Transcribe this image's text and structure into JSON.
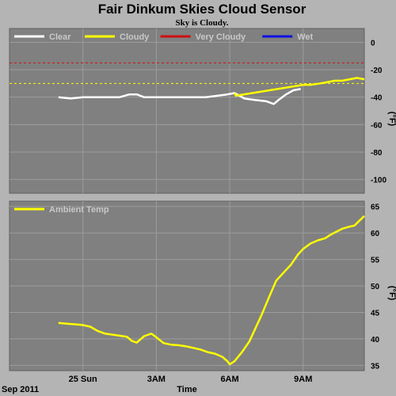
{
  "header": {
    "title": "Fair Dinkum Skies Cloud Sensor",
    "subtitle": "Sky is Cloudy."
  },
  "footer": {
    "date_label": "Sep 2011",
    "x_axis_label": "Time"
  },
  "colors": {
    "background": "#b4b4b4",
    "plot_area": "#808080",
    "grid": "#9c9c9c",
    "clear": "#ffffff",
    "cloudy": "#ffff00",
    "very_cloudy": "#d01010",
    "wet": "#1010e0"
  },
  "chart_data": [
    {
      "type": "line",
      "name": "sky-temperature",
      "ylabel": "(°F)",
      "ylim": [
        -110,
        10
      ],
      "yticks": [
        0,
        -20,
        -40,
        -60,
        -80,
        -100
      ],
      "x_hours_range": [
        -3.0,
        11.5
      ],
      "x_ticks": [
        {
          "hour": 0,
          "label": "25 Sun"
        },
        {
          "hour": 3,
          "label": "3AM"
        },
        {
          "hour": 6,
          "label": "6AM"
        },
        {
          "hour": 9,
          "label": "9AM"
        }
      ],
      "legend": [
        {
          "name": "Clear",
          "color": "#ffffff"
        },
        {
          "name": "Cloudy",
          "color": "#ffff00"
        },
        {
          "name": "Very Cloudy",
          "color": "#d01010"
        },
        {
          "name": "Wet",
          "color": "#1010e0"
        }
      ],
      "thresholds": [
        {
          "name": "Very Cloudy",
          "value": -15,
          "color": "#d01010"
        },
        {
          "name": "Cloudy",
          "value": -30,
          "color": "#ffff00"
        }
      ],
      "series": [
        {
          "name": "Clear",
          "color": "#ffffff",
          "x": [
            -1.0,
            -0.5,
            0.0,
            0.5,
            1.0,
            1.5,
            1.9,
            2.2,
            2.5,
            3.0,
            3.5,
            4.0,
            4.5,
            5.0,
            5.5,
            5.9,
            6.2,
            6.6,
            7.0,
            7.5,
            7.8,
            8.0,
            8.3,
            8.6,
            8.9
          ],
          "y": [
            -40,
            -41,
            -40,
            -40,
            -40,
            -40,
            -38,
            -38,
            -40,
            -40,
            -40,
            -40,
            -40,
            -40,
            -39,
            -38,
            -37,
            -41,
            -42,
            -43,
            -45,
            -42,
            -38,
            -35,
            -34
          ]
        },
        {
          "name": "Cloudy",
          "color": "#ffff00",
          "x": [
            6.2,
            6.25,
            9.0,
            9.3,
            9.7,
            10.0,
            10.3,
            10.6,
            10.9,
            11.2,
            11.5
          ],
          "y": [
            -37,
            -39,
            -31,
            -31,
            -30,
            -29,
            -28,
            -28,
            -27,
            -26,
            -27
          ]
        }
      ]
    },
    {
      "type": "line",
      "name": "ambient-temperature",
      "ylabel": "(°F)",
      "ylim": [
        34,
        66
      ],
      "yticks": [
        35,
        40,
        45,
        50,
        55,
        60,
        65
      ],
      "x_hours_range": [
        -3.0,
        11.5
      ],
      "legend": [
        {
          "name": "Ambient Temp",
          "color": "#ffff00"
        }
      ],
      "series": [
        {
          "name": "Ambient Temp",
          "color": "#ffff00",
          "x": [
            -1.0,
            -0.5,
            -0.2,
            0.0,
            0.3,
            0.6,
            0.9,
            1.2,
            1.5,
            1.8,
            2.0,
            2.2,
            2.5,
            2.8,
            3.0,
            3.3,
            3.6,
            3.9,
            4.2,
            4.5,
            4.8,
            5.1,
            5.4,
            5.7,
            5.9,
            6.0,
            6.2,
            6.5,
            6.8,
            7.0,
            7.3,
            7.6,
            7.9,
            8.2,
            8.5,
            8.8,
            9.0,
            9.3,
            9.6,
            9.9,
            10.1,
            10.3,
            10.6,
            10.9,
            11.1,
            11.3,
            11.5
          ],
          "y": [
            43,
            42.8,
            42.7,
            42.6,
            42.3,
            41.5,
            41.0,
            40.8,
            40.6,
            40.4,
            39.6,
            39.3,
            40.5,
            41.0,
            40.3,
            39.2,
            38.9,
            38.8,
            38.6,
            38.3,
            38.0,
            37.5,
            37.2,
            36.6,
            35.8,
            35.2,
            35.8,
            37.5,
            39.5,
            41.5,
            44.5,
            47.8,
            51.0,
            52.5,
            54.0,
            56.0,
            57.0,
            58.0,
            58.6,
            59.0,
            59.6,
            60.1,
            60.8,
            61.2,
            61.4,
            62.3,
            63.2
          ]
        }
      ]
    }
  ]
}
